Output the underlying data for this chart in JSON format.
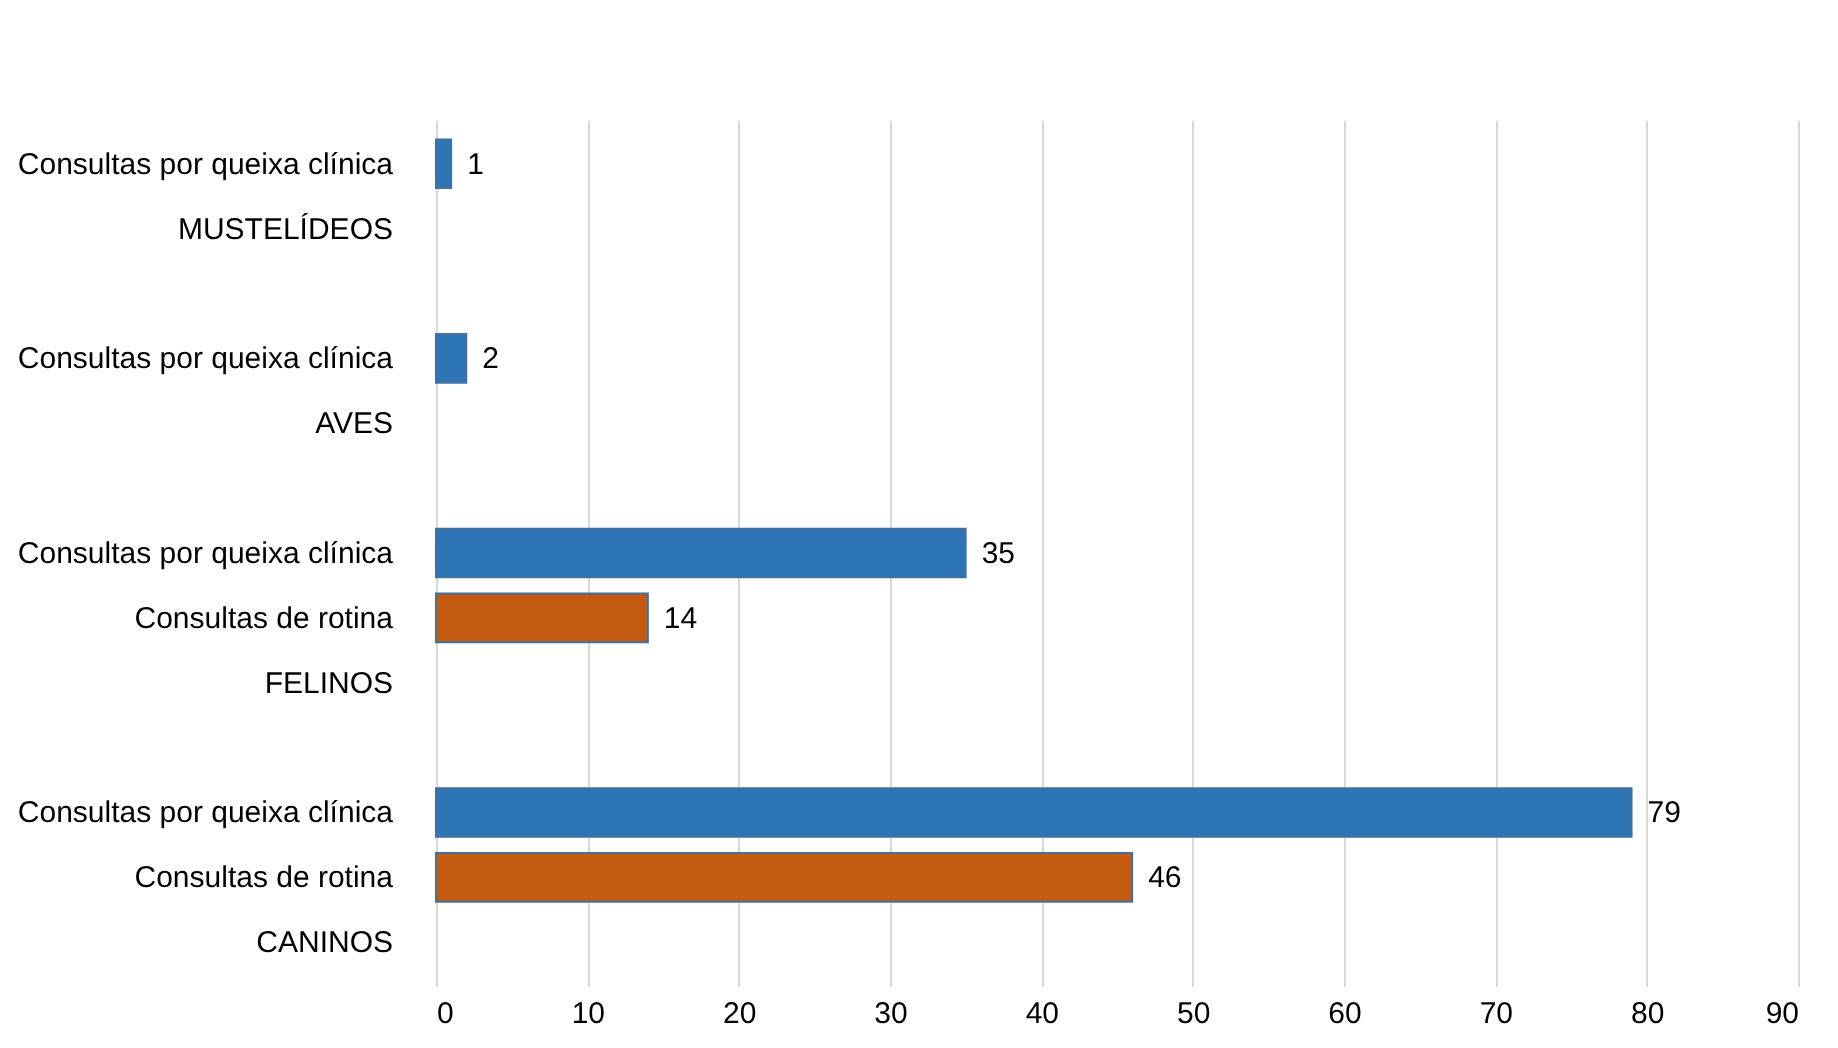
{
  "chart_data": {
    "type": "bar",
    "orientation": "horizontal",
    "categories": [
      "Consultas por queixa clínica",
      "MUSTELÍDEOS",
      null,
      "Consultas por queixa clínica",
      "AVES",
      null,
      "Consultas por queixa clínica",
      "Consultas de rotina",
      "FELINOS",
      null,
      "Consultas por queixa clínica",
      "Consultas de rotina",
      "CANINOS"
    ],
    "values": [
      1,
      null,
      null,
      2,
      null,
      null,
      35,
      14,
      null,
      null,
      79,
      46,
      null
    ],
    "colors": [
      "#2e75b6",
      null,
      null,
      "#2e75b6",
      null,
      null,
      "#2e75b6",
      "#c55a11",
      null,
      null,
      "#2e75b6",
      "#c55a11",
      null
    ],
    "xlim": [
      0,
      90
    ],
    "xticks": [
      0,
      10,
      20,
      30,
      40,
      50,
      60,
      70,
      80,
      90
    ],
    "grid": "x",
    "data_labels": true
  }
}
